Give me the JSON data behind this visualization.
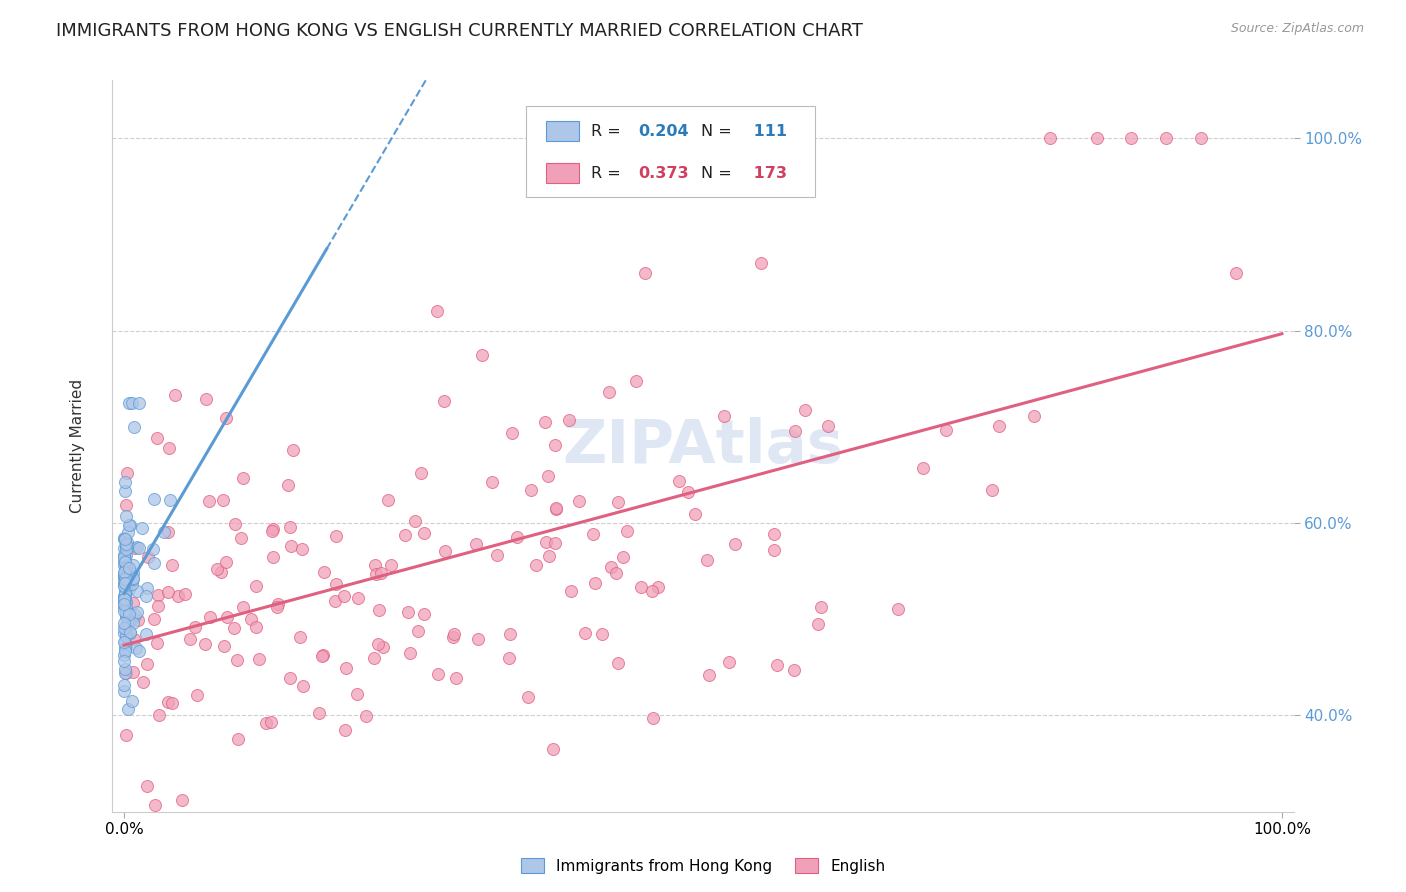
{
  "title": "IMMIGRANTS FROM HONG KONG VS ENGLISH CURRENTLY MARRIED CORRELATION CHART",
  "source": "Source: ZipAtlas.com",
  "ylabel": "Currently Married",
  "x_tick_labels": [
    "0.0%",
    "100.0%"
  ],
  "y_tick_values": [
    0.4,
    0.6,
    0.8,
    1.0
  ],
  "y_tick_labels": [
    "40.0%",
    "60.0%",
    "80.0%",
    "100.0%"
  ],
  "blue_line_color": "#5b9bd5",
  "pink_line_color": "#e06080",
  "blue_scatter_face": "#aec6e8",
  "blue_scatter_edge": "#5b9bd5",
  "pink_scatter_face": "#f0a0b8",
  "pink_scatter_edge": "#e06080",
  "watermark_color": "#c8d8ec",
  "background_color": "#ffffff",
  "grid_color": "#d0d0d0",
  "title_fontsize": 13,
  "tick_fontsize": 11,
  "right_tick_color": "#5b9bd5",
  "legend_R_blue_color": "#2b7bba",
  "legend_R_pink_color": "#d04060",
  "N_blue": 111,
  "N_pink": 173,
  "R_blue": 0.204,
  "R_pink": 0.373,
  "xlim": [
    -0.01,
    1.01
  ],
  "ylim": [
    0.3,
    1.06
  ]
}
